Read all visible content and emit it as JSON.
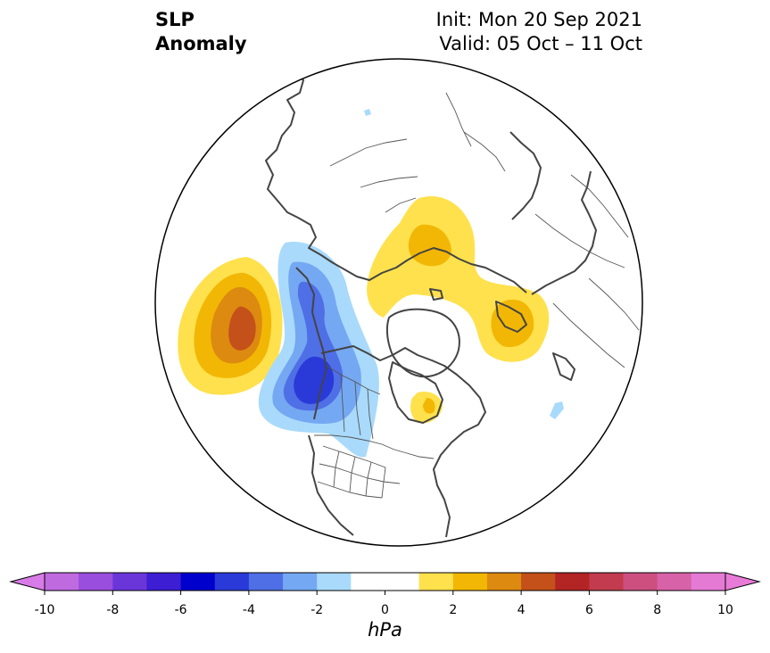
{
  "header": {
    "title_line1": "SLP",
    "title_line2": "Anomaly",
    "init": "Init: Mon 20 Sep 2021",
    "valid": "Valid: 05 Oct – 11 Oct"
  },
  "colorbar": {
    "unit": "hPa",
    "ticks": [
      "-10",
      "-8",
      "-6",
      "-4",
      "-2",
      "0",
      "2",
      "4",
      "6",
      "8",
      "10"
    ],
    "min": -10,
    "max": 10,
    "low_extend_color": "#d87be8",
    "high_extend_color": "#e87bd8",
    "bins": [
      {
        "from": -10,
        "to": -9,
        "color": "#c06ae0"
      },
      {
        "from": -9,
        "to": -8,
        "color": "#9a4ede"
      },
      {
        "from": -8,
        "to": -7,
        "color": "#6a36da"
      },
      {
        "from": -7,
        "to": -6,
        "color": "#3d1ed3"
      },
      {
        "from": -6,
        "to": -5,
        "color": "#0000cd"
      },
      {
        "from": -5,
        "to": -4,
        "color": "#2a3ad8"
      },
      {
        "from": -4,
        "to": -3,
        "color": "#4f6fe6"
      },
      {
        "from": -3,
        "to": -2,
        "color": "#74a8f2"
      },
      {
        "from": -2,
        "to": -1,
        "color": "#a9dafb"
      },
      {
        "from": -1,
        "to": 1,
        "color": "#ffffff"
      },
      {
        "from": 1,
        "to": 2,
        "color": "#ffe14d"
      },
      {
        "from": 2,
        "to": 3,
        "color": "#f2b705"
      },
      {
        "from": 3,
        "to": 4,
        "color": "#dd8a10"
      },
      {
        "from": 4,
        "to": 5,
        "color": "#c4501a"
      },
      {
        "from": 5,
        "to": 6,
        "color": "#b32424"
      },
      {
        "from": 6,
        "to": 7,
        "color": "#c23b4e"
      },
      {
        "from": 7,
        "to": 8,
        "color": "#cc4f80"
      },
      {
        "from": 8,
        "to": 9,
        "color": "#d862a8"
      },
      {
        "from": 9,
        "to": 10,
        "color": "#e57ad4"
      }
    ]
  }
}
